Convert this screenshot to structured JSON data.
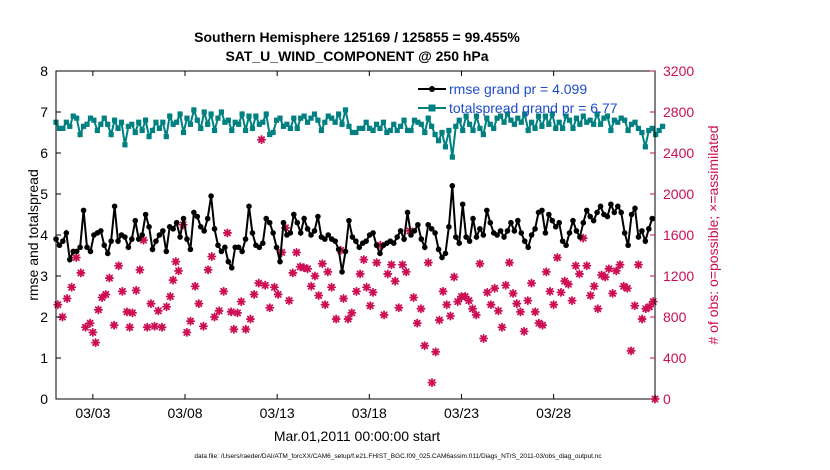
{
  "chart_data": {
    "type": "line",
    "title_line1": "Southern Hemisphere 125169 / 125855 = 99.455%",
    "title_line2": "SAT_U_WIND_COMPONENT @ 250 hPa",
    "xlabel": "Mar.01,2011 00:00:00 start",
    "ylabel_left": "rmse and totalspread",
    "ylabel_right": "# of obs: o=possible; ×=assimilated",
    "footer": "data file: /Users/raeder/DAI/ATM_forcXX/CAM6_setup/f.e21.FHIST_BGC.f09_025.CAM6assim.011/Diags_NTrS_2011-03/obs_diag_output.nc",
    "xlim": [
      1,
      33.5
    ],
    "ylim_left": [
      0,
      8
    ],
    "ylim_right": [
      0,
      3200
    ],
    "x_ticks": [
      3,
      8,
      13,
      18,
      23,
      28
    ],
    "x_tick_labels": [
      "03/03",
      "03/08",
      "03/13",
      "03/18",
      "03/23",
      "03/28"
    ],
    "y_left_ticks": [
      "0",
      "1",
      "2",
      "3",
      "4",
      "5",
      "6",
      "7",
      "8"
    ],
    "y_right_ticks": [
      "0",
      "400",
      "800",
      "1200",
      "1600",
      "2000",
      "2400",
      "2800",
      "3200"
    ],
    "legend": [
      {
        "label": "rmse grand pr = 4.099",
        "color": "#000000"
      },
      {
        "label": "totalspread grand pr = 6.77",
        "color": "#008080"
      }
    ],
    "colors": {
      "rmse": "#000000",
      "spread": "#008080",
      "obs": "#cc0e55"
    },
    "rmse": [
      3.9,
      3.75,
      3.85,
      4.05,
      3.4,
      3.6,
      3.6,
      3.7,
      4.6,
      3.7,
      3.6,
      4.0,
      4.05,
      4.1,
      3.75,
      3.55,
      3.85,
      4.7,
      3.85,
      4.0,
      3.95,
      3.7,
      3.9,
      4.35,
      3.9,
      4.0,
      4.5,
      4.2,
      3.65,
      3.85,
      4.0,
      4.1,
      3.6,
      4.2,
      4.15,
      4.3,
      3.95,
      4.4,
      3.9,
      3.65,
      4.55,
      4.45,
      4.2,
      4.1,
      4.4,
      4.95,
      4.15,
      3.75,
      3.6,
      3.7,
      3.35,
      3.2,
      3.7,
      3.7,
      3.6,
      3.9,
      4.7,
      4.05,
      3.75,
      3.7,
      3.8,
      4.4,
      4.3,
      4.05,
      3.7,
      3.35,
      4.3,
      4.0,
      4.05,
      4.5,
      4.3,
      4.05,
      4.4,
      4.15,
      4.0,
      4.1,
      4.45,
      3.95,
      3.9,
      4.0,
      3.9,
      3.85,
      3.65,
      3.1,
      3.6,
      4.35,
      3.95,
      3.85,
      3.7,
      3.8,
      3.85,
      4.0,
      4.05,
      3.75,
      3.55,
      3.75,
      3.8,
      3.85,
      3.8,
      3.95,
      4.1,
      3.9,
      4.55,
      4.0,
      4.1,
      4.25,
      3.9,
      3.7,
      4.25,
      4.15,
      4.05,
      3.65,
      3.45,
      3.55,
      4.2,
      5.2,
      3.95,
      3.8,
      4.75,
      3.95,
      3.85,
      4.4,
      3.95,
      4.15,
      4.0,
      4.6,
      4.3,
      4.05,
      4.0,
      4.1,
      3.95,
      4.1,
      4.3,
      4.1,
      4.35,
      4.05,
      3.85,
      3.7,
      4.0,
      4.15,
      4.55,
      4.6,
      4.05,
      4.5,
      4.35,
      4.2,
      4.3,
      3.85,
      3.75,
      4.05,
      4.35,
      4.1,
      3.95,
      4.3,
      4.6,
      4.45,
      4.35,
      4.55,
      4.7,
      4.5,
      4.45,
      4.75,
      4.55,
      4.7,
      4.55,
      4.05,
      3.75,
      4.5,
      4.65,
      3.95,
      4.1,
      3.85,
      4.15,
      4.4
    ],
    "spread": [
      6.75,
      6.6,
      6.6,
      6.75,
      6.65,
      6.9,
      6.85,
      6.45,
      6.65,
      6.7,
      6.85,
      6.8,
      6.55,
      6.7,
      6.85,
      6.7,
      6.45,
      6.8,
      6.6,
      6.75,
      6.2,
      6.65,
      6.7,
      6.5,
      6.75,
      6.55,
      6.8,
      6.4,
      6.55,
      6.75,
      6.6,
      6.75,
      6.4,
      6.9,
      6.7,
      6.75,
      6.95,
      6.5,
      6.85,
      6.7,
      7.05,
      6.8,
      6.6,
      7.0,
      6.7,
      6.95,
      6.55,
      6.85,
      7.0,
      6.75,
      6.8,
      6.55,
      6.75,
      6.7,
      6.95,
      6.55,
      6.9,
      6.6,
      6.9,
      6.7,
      6.75,
      6.95,
      6.45,
      6.5,
      6.8,
      6.85,
      6.65,
      6.7,
      6.6,
      6.85,
      6.6,
      6.85,
      6.9,
      6.75,
      6.85,
      6.95,
      6.8,
      6.55,
      6.75,
      6.9,
      6.85,
      6.75,
      6.95,
      6.7,
      7.05,
      6.65,
      6.5,
      6.5,
      6.6,
      6.6,
      6.75,
      6.6,
      6.55,
      6.7,
      6.6,
      6.75,
      6.5,
      6.55,
      6.7,
      6.55,
      6.65,
      6.8,
      6.55,
      6.55,
      6.8,
      6.75,
      6.7,
      6.5,
      6.85,
      6.65,
      6.45,
      6.3,
      6.5,
      6.15,
      6.55,
      5.9,
      6.65,
      6.8,
      6.55,
      6.9,
      6.7,
      6.55,
      6.9,
      6.6,
      6.45,
      6.85,
      6.7,
      6.6,
      6.85,
      6.9,
      6.75,
      6.95,
      6.8,
      6.7,
      6.85,
      6.75,
      6.95,
      6.55,
      6.75,
      6.6,
      6.9,
      6.65,
      6.9,
      6.7,
      6.95,
      6.6,
      6.75,
      6.6,
      6.9,
      6.8,
      6.6,
      6.85,
      6.7,
      6.9,
      6.75,
      6.8,
      6.7,
      6.95,
      6.7,
      6.85,
      6.9,
      6.55,
      6.8,
      6.75,
      6.85,
      6.8,
      6.55,
      6.7,
      6.75,
      6.6,
      6.5,
      6.15,
      6.55,
      6.6,
      6.45,
      6.55,
      6.65
    ],
    "obs_assimilated": [
      [
        1.1,
        920
      ],
      [
        1.35,
        800
      ],
      [
        1.6,
        980
      ],
      [
        1.85,
        1090
      ],
      [
        2.1,
        1380
      ],
      [
        2.35,
        1230
      ],
      [
        2.6,
        700
      ],
      [
        2.85,
        740
      ],
      [
        3.0,
        650
      ],
      [
        3.15,
        550
      ],
      [
        3.3,
        870
      ],
      [
        3.5,
        990
      ],
      [
        3.7,
        1020
      ],
      [
        3.9,
        1180
      ],
      [
        4.15,
        720
      ],
      [
        4.4,
        1300
      ],
      [
        4.6,
        1050
      ],
      [
        4.85,
        850
      ],
      [
        5.0,
        700
      ],
      [
        5.15,
        840
      ],
      [
        5.35,
        1060
      ],
      [
        5.55,
        1260
      ],
      [
        5.75,
        1550
      ],
      [
        5.95,
        700
      ],
      [
        6.15,
        930
      ],
      [
        6.35,
        710
      ],
      [
        6.55,
        860
      ],
      [
        6.75,
        700
      ],
      [
        7.0,
        900
      ],
      [
        7.2,
        1000
      ],
      [
        7.35,
        1160
      ],
      [
        7.5,
        1340
      ],
      [
        7.65,
        1250
      ],
      [
        7.9,
        1700
      ],
      [
        8.1,
        650
      ],
      [
        8.3,
        760
      ],
      [
        8.55,
        1100
      ],
      [
        8.75,
        930
      ],
      [
        9.0,
        710
      ],
      [
        9.25,
        1260
      ],
      [
        9.45,
        1390
      ],
      [
        9.6,
        800
      ],
      [
        9.85,
        860
      ],
      [
        10.1,
        1050
      ],
      [
        10.3,
        1620
      ],
      [
        10.5,
        850
      ],
      [
        10.65,
        680
      ],
      [
        10.85,
        840
      ],
      [
        11.05,
        950
      ],
      [
        11.3,
        680
      ],
      [
        11.55,
        780
      ],
      [
        11.75,
        1020
      ],
      [
        12.0,
        1130
      ],
      [
        12.15,
        2530
      ],
      [
        12.35,
        1110
      ],
      [
        12.6,
        890
      ],
      [
        12.85,
        1090
      ],
      [
        13.05,
        1020
      ],
      [
        13.25,
        1430
      ],
      [
        13.45,
        1670
      ],
      [
        13.65,
        960
      ],
      [
        13.85,
        1230
      ],
      [
        14.05,
        1430
      ],
      [
        14.25,
        1290
      ],
      [
        14.45,
        1280
      ],
      [
        14.65,
        1270
      ],
      [
        14.85,
        1100
      ],
      [
        15.05,
        1200
      ],
      [
        15.25,
        1010
      ],
      [
        15.45,
        1320
      ],
      [
        15.6,
        920
      ],
      [
        15.75,
        1240
      ],
      [
        15.95,
        1090
      ],
      [
        16.2,
        780
      ],
      [
        16.45,
        1450
      ],
      [
        16.6,
        980
      ],
      [
        16.85,
        780
      ],
      [
        17.05,
        840
      ],
      [
        17.3,
        1050
      ],
      [
        17.5,
        1220
      ],
      [
        17.7,
        1360
      ],
      [
        17.85,
        1090
      ],
      [
        18.05,
        910
      ],
      [
        18.2,
        1040
      ],
      [
        18.4,
        1330
      ],
      [
        18.6,
        1500
      ],
      [
        18.8,
        820
      ],
      [
        19.0,
        1220
      ],
      [
        19.2,
        1310
      ],
      [
        19.4,
        1150
      ],
      [
        19.6,
        890
      ],
      [
        19.8,
        1310
      ],
      [
        20.0,
        1240
      ],
      [
        20.2,
        1640
      ],
      [
        20.4,
        990
      ],
      [
        20.6,
        740
      ],
      [
        20.8,
        880
      ],
      [
        21.0,
        520
      ],
      [
        21.2,
        1330
      ],
      [
        21.4,
        160
      ],
      [
        21.6,
        460
      ],
      [
        21.8,
        770
      ],
      [
        22.0,
        1050
      ],
      [
        22.2,
        920
      ],
      [
        22.4,
        810
      ],
      [
        22.6,
        1190
      ],
      [
        22.8,
        950
      ],
      [
        23.0,
        1000
      ],
      [
        23.2,
        1000
      ],
      [
        23.4,
        960
      ],
      [
        23.6,
        880
      ],
      [
        23.8,
        820
      ],
      [
        24.0,
        1320
      ],
      [
        24.2,
        590
      ],
      [
        24.4,
        1040
      ],
      [
        24.6,
        920
      ],
      [
        24.8,
        1080
      ],
      [
        25.0,
        860
      ],
      [
        25.2,
        700
      ],
      [
        25.4,
        1110
      ],
      [
        25.6,
        1330
      ],
      [
        25.8,
        1030
      ],
      [
        26.0,
        930
      ],
      [
        26.2,
        850
      ],
      [
        26.4,
        660
      ],
      [
        26.6,
        960
      ],
      [
        26.8,
        1130
      ],
      [
        27.0,
        850
      ],
      [
        27.2,
        740
      ],
      [
        27.4,
        720
      ],
      [
        27.6,
        1240
      ],
      [
        27.8,
        1050
      ],
      [
        28.0,
        920
      ],
      [
        28.2,
        1380
      ],
      [
        28.4,
        1040
      ],
      [
        28.6,
        1150
      ],
      [
        28.8,
        1120
      ],
      [
        29.0,
        960
      ],
      [
        29.2,
        1300
      ],
      [
        29.4,
        1220
      ],
      [
        29.6,
        1570
      ],
      [
        29.8,
        1300
      ],
      [
        30.0,
        1010
      ],
      [
        30.2,
        1100
      ],
      [
        30.4,
        880
      ],
      [
        30.6,
        1210
      ],
      [
        30.8,
        1190
      ],
      [
        31.0,
        1270
      ],
      [
        31.2,
        1030
      ],
      [
        31.4,
        1250
      ],
      [
        31.6,
        1310
      ],
      [
        31.8,
        1100
      ],
      [
        32.0,
        1080
      ],
      [
        32.2,
        470
      ],
      [
        32.4,
        910
      ],
      [
        32.6,
        1310
      ],
      [
        32.8,
        780
      ],
      [
        33.0,
        880
      ],
      [
        33.2,
        900
      ],
      [
        33.4,
        950
      ]
    ],
    "obs_final_marker": [
      33.5,
      0
    ]
  }
}
